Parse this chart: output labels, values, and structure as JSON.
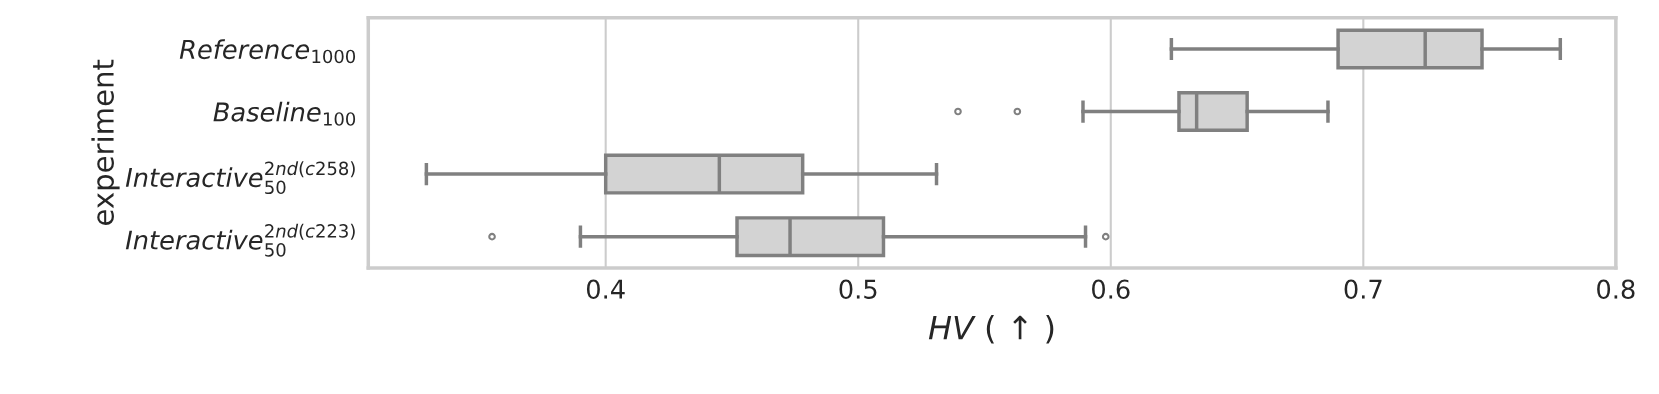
{
  "chart_data": {
    "type": "box",
    "orientation": "horizontal",
    "xlabel": "HV ( ↑ )",
    "ylabel": "experiment",
    "categories": [
      "Reference$_{1000}$",
      "Baseline$_{100}$",
      "Interactive$^{2nd(c258)}$$_{50}$",
      "Interactive$^{2nd(c223)}$$_{50}$"
    ],
    "boxes": [
      {
        "low": 0.624,
        "q1": 0.69,
        "median": 0.7245,
        "q3": 0.747,
        "high": 0.778
      },
      {
        "low": 0.589,
        "q1": 0.627,
        "median": 0.634,
        "q3": 0.654,
        "high": 0.686,
        "outliers": [
          0.5395,
          0.563
        ]
      },
      {
        "low": 0.329,
        "q1": 0.4,
        "median": 0.445,
        "q3": 0.478,
        "high": 0.531
      },
      {
        "low": 0.39,
        "q1": 0.452,
        "median": 0.473,
        "q3": 0.51,
        "high": 0.59,
        "outliers": [
          0.355,
          0.598
        ]
      }
    ],
    "color": "#d3d3d3",
    "xlim": [
      0.306,
      0.8
    ],
    "xticks": [
      0.4,
      0.5,
      0.6,
      0.7,
      0.8
    ],
    "grid": "x"
  }
}
